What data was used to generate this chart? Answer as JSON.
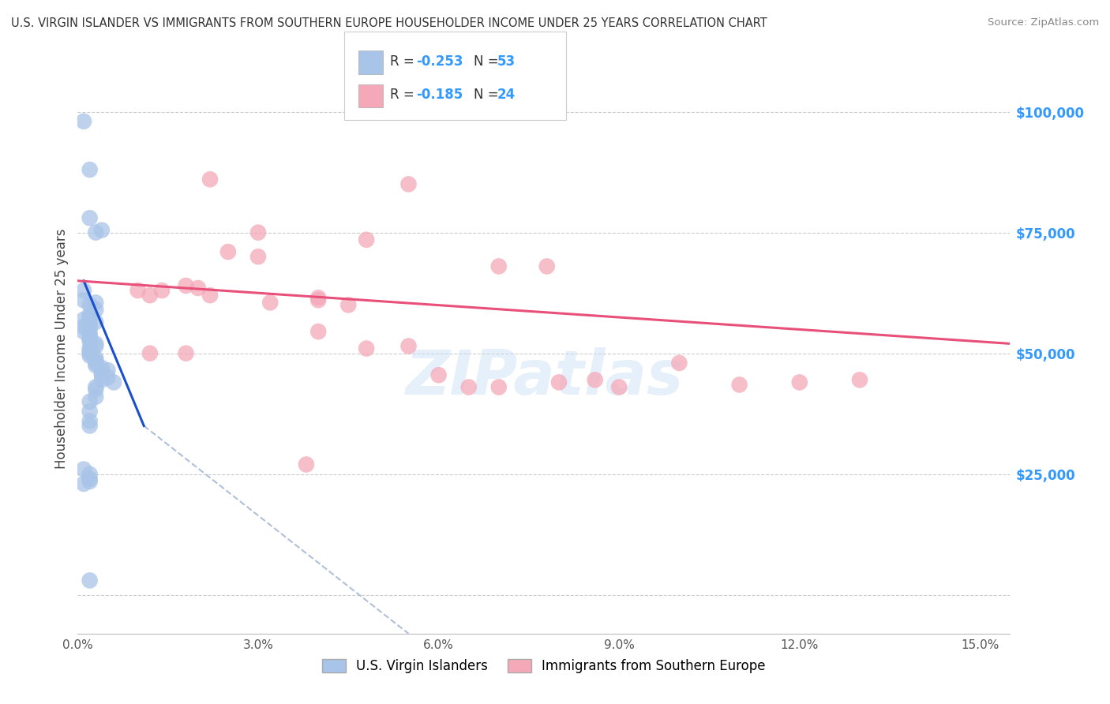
{
  "title": "U.S. VIRGIN ISLANDER VS IMMIGRANTS FROM SOUTHERN EUROPE HOUSEHOLDER INCOME UNDER 25 YEARS CORRELATION CHART",
  "source": "Source: ZipAtlas.com",
  "ylabel": "Householder Income Under 25 years",
  "yticks": [
    0,
    25000,
    50000,
    75000,
    100000
  ],
  "ytick_labels": [
    "",
    "$25,000",
    "$50,000",
    "$75,000",
    "$100,000"
  ],
  "xlim": [
    0.0,
    0.155
  ],
  "ylim": [
    -8000,
    110000
  ],
  "series1_label": "U.S. Virgin Islanders",
  "series2_label": "Immigrants from Southern Europe",
  "series1_color": "#a8c4e8",
  "series2_color": "#f4a8b8",
  "trendline1_color": "#1a4fcc",
  "trendline2_color": "#e8507a",
  "trendline_ext_color": "#b0c0d8",
  "watermark": "ZIPatlas",
  "blue_trendline": [
    [
      0.001,
      65000
    ],
    [
      0.011,
      35000
    ]
  ],
  "blue_trendline_ext": [
    [
      0.011,
      35000
    ],
    [
      0.055,
      -8000
    ]
  ],
  "pink_trendline": [
    [
      0.0,
      65000
    ],
    [
      0.155,
      52000
    ]
  ],
  "blue_points": [
    [
      0.001,
      98000
    ],
    [
      0.002,
      88000
    ],
    [
      0.002,
      78000
    ],
    [
      0.004,
      75500
    ],
    [
      0.003,
      75000
    ],
    [
      0.001,
      63000
    ],
    [
      0.001,
      61000
    ],
    [
      0.003,
      60500
    ],
    [
      0.002,
      60000
    ],
    [
      0.003,
      59000
    ],
    [
      0.002,
      58000
    ],
    [
      0.002,
      57500
    ],
    [
      0.002,
      57000
    ],
    [
      0.003,
      56500
    ],
    [
      0.002,
      56000
    ],
    [
      0.001,
      55500
    ],
    [
      0.002,
      55000
    ],
    [
      0.001,
      54500
    ],
    [
      0.002,
      54000
    ],
    [
      0.002,
      53500
    ],
    [
      0.002,
      53000
    ],
    [
      0.002,
      52500
    ],
    [
      0.003,
      52000
    ],
    [
      0.003,
      51500
    ],
    [
      0.002,
      51000
    ],
    [
      0.002,
      50500
    ],
    [
      0.002,
      50000
    ],
    [
      0.002,
      49500
    ],
    [
      0.003,
      49000
    ],
    [
      0.003,
      48500
    ],
    [
      0.003,
      48000
    ],
    [
      0.003,
      47500
    ],
    [
      0.004,
      47000
    ],
    [
      0.005,
      46500
    ],
    [
      0.004,
      46000
    ],
    [
      0.004,
      45500
    ],
    [
      0.005,
      45000
    ],
    [
      0.004,
      44500
    ],
    [
      0.006,
      44000
    ],
    [
      0.003,
      43000
    ],
    [
      0.003,
      42500
    ],
    [
      0.003,
      41000
    ],
    [
      0.002,
      40000
    ],
    [
      0.002,
      38000
    ],
    [
      0.002,
      36000
    ],
    [
      0.002,
      35000
    ],
    [
      0.001,
      26000
    ],
    [
      0.002,
      25000
    ],
    [
      0.002,
      24000
    ],
    [
      0.002,
      23500
    ],
    [
      0.001,
      23000
    ],
    [
      0.002,
      3000
    ],
    [
      0.001,
      57000
    ]
  ],
  "pink_points": [
    [
      0.022,
      86000
    ],
    [
      0.055,
      85000
    ],
    [
      0.03,
      75000
    ],
    [
      0.048,
      73500
    ],
    [
      0.025,
      71000
    ],
    [
      0.03,
      70000
    ],
    [
      0.07,
      68000
    ],
    [
      0.078,
      68000
    ],
    [
      0.018,
      64000
    ],
    [
      0.01,
      63000
    ],
    [
      0.012,
      62000
    ],
    [
      0.02,
      63500
    ],
    [
      0.014,
      63000
    ],
    [
      0.022,
      62000
    ],
    [
      0.04,
      61000
    ],
    [
      0.032,
      60500
    ],
    [
      0.04,
      61500
    ],
    [
      0.045,
      60000
    ],
    [
      0.04,
      54500
    ],
    [
      0.055,
      51500
    ],
    [
      0.048,
      51000
    ],
    [
      0.012,
      50000
    ],
    [
      0.018,
      50000
    ],
    [
      0.086,
      44500
    ],
    [
      0.065,
      43000
    ],
    [
      0.09,
      43000
    ],
    [
      0.038,
      27000
    ],
    [
      0.08,
      44000
    ],
    [
      0.06,
      45500
    ],
    [
      0.07,
      43000
    ],
    [
      0.1,
      48000
    ],
    [
      0.11,
      43500
    ],
    [
      0.12,
      44000
    ],
    [
      0.13,
      44500
    ]
  ]
}
